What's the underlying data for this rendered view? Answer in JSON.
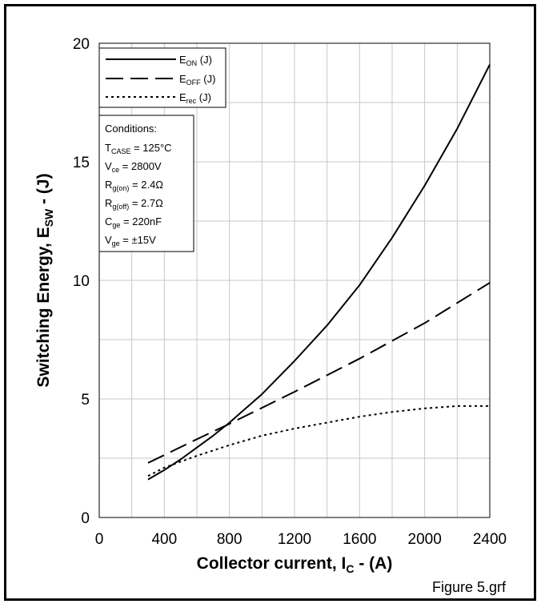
{
  "chart_data": {
    "type": "line",
    "xlabel_main": "Collector current, I",
    "xlabel_sub": "C",
    "xlabel_tail": " - (A)",
    "ylabel_main": "Switching Energy, E",
    "ylabel_sub": "SW",
    "ylabel_tail": " - (J)",
    "xlim": [
      0,
      2400
    ],
    "ylim": [
      0,
      20
    ],
    "x_ticks": [
      "0",
      "400",
      "800",
      "1200",
      "1600",
      "2000",
      "2400"
    ],
    "y_ticks": [
      "0",
      "5",
      "10",
      "15",
      "20"
    ],
    "grid": true,
    "legend_position": "top-left",
    "series": [
      {
        "name": "E",
        "name_sub": "ON",
        "name_tail": " (J)",
        "dash": "solid",
        "x": [
          300,
          400,
          500,
          600,
          700,
          800,
          900,
          1000,
          1200,
          1400,
          1600,
          1800,
          2000,
          2200,
          2400
        ],
        "y": [
          1.6,
          2.0,
          2.45,
          2.95,
          3.45,
          4.0,
          4.6,
          5.2,
          6.6,
          8.1,
          9.8,
          11.8,
          14.0,
          16.4,
          19.1
        ]
      },
      {
        "name": "E",
        "name_sub": "OFF",
        "name_tail": " (J)",
        "dash": "long-dash",
        "x": [
          300,
          600,
          800,
          1200,
          1600,
          2000,
          2400
        ],
        "y": [
          2.3,
          3.3,
          3.95,
          5.3,
          6.7,
          8.2,
          9.9
        ]
      },
      {
        "name": "E",
        "name_sub": "rec",
        "name_tail": " (J)",
        "dash": "dotted",
        "x": [
          300,
          400,
          600,
          800,
          1000,
          1200,
          1400,
          1600,
          1800,
          2000,
          2200,
          2400
        ],
        "y": [
          1.75,
          2.1,
          2.6,
          3.05,
          3.45,
          3.75,
          4.0,
          4.25,
          4.45,
          4.6,
          4.7,
          4.7
        ]
      }
    ],
    "conditions": {
      "title": "Conditions:",
      "lines": [
        {
          "main": "T",
          "sub": "CASE",
          "tail": " = 125°C"
        },
        {
          "main": "V",
          "sub": "ce",
          "tail": " = 2800V"
        },
        {
          "main": "R",
          "sub": "g(on)",
          "tail": " = 2.4Ω"
        },
        {
          "main": "R",
          "sub": "g(off)",
          "tail": " = 2.7Ω"
        },
        {
          "main": "C",
          "sub": "ge",
          "tail": " = 220nF"
        },
        {
          "main": "V",
          "sub": "ge",
          "tail": " = ±15V"
        }
      ]
    }
  },
  "footer": "Figure 5.grf"
}
